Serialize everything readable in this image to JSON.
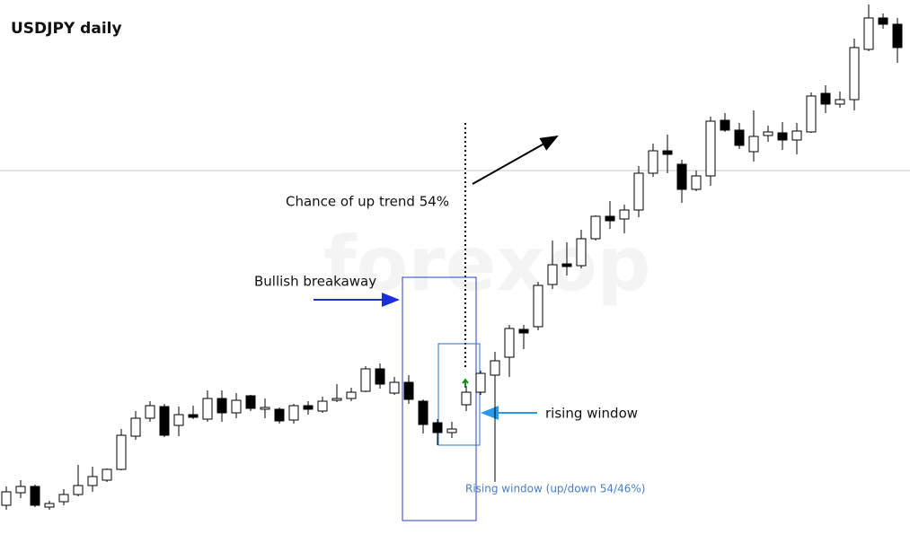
{
  "chart_data": {
    "type": "candlestick",
    "title": "USDJPY daily",
    "ylim": [
      0,
      595
    ],
    "hline": 405,
    "annotations": [
      "Chance of up trend 54%",
      "Bullish breakaway",
      "rising window",
      "Rising window (up/down 54/46%)"
    ],
    "watermark": "forexop",
    "open": [
      32,
      46,
      53,
      30,
      36,
      44,
      54,
      60,
      72,
      109,
      129,
      142,
      121,
      133,
      128,
      151,
      135,
      154,
      139,
      139,
      127,
      143,
      137,
      149,
      151,
      159,
      184,
      157,
      169,
      148,
      124,
      113,
      144,
      158,
      177,
      197,
      228,
      231,
      278,
      301,
      299,
      329,
      354,
      351,
      361,
      402,
      427,
      412,
      384,
      399,
      461,
      450,
      426,
      444,
      447,
      439,
      448,
      491,
      479,
      484,
      540,
      575,
      568
    ],
    "high": [
      53,
      60,
      55,
      37,
      50,
      77,
      75,
      73,
      117,
      137,
      148,
      145,
      142,
      143,
      160,
      160,
      157,
      155,
      151,
      141,
      145,
      148,
      153,
      167,
      163,
      187,
      190,
      175,
      177,
      150,
      128,
      125,
      165,
      182,
      203,
      233,
      233,
      281,
      327,
      325,
      339,
      355,
      371,
      367,
      410,
      435,
      445,
      417,
      405,
      465,
      469,
      458,
      472,
      455,
      459,
      458,
      492,
      500,
      493,
      552,
      590,
      580,
      575
    ],
    "low": [
      27,
      40,
      30,
      27,
      32,
      42,
      47,
      58,
      71,
      105,
      125,
      108,
      109,
      128,
      125,
      125,
      129,
      137,
      129,
      123,
      123,
      133,
      135,
      147,
      148,
      158,
      162,
      155,
      145,
      112,
      99,
      107,
      137,
      155,
      58,
      175,
      206,
      227,
      273,
      288,
      296,
      327,
      340,
      335,
      353,
      398,
      402,
      369,
      382,
      388,
      448,
      429,
      415,
      437,
      428,
      423,
      447,
      469,
      475,
      472,
      538,
      563,
      525
    ],
    "close": [
      47,
      53,
      32,
      34,
      44,
      54,
      64,
      72,
      110,
      129,
      143,
      110,
      133,
      130,
      151,
      135,
      149,
      140,
      141,
      126,
      143,
      139,
      148,
      151,
      158,
      184,
      167,
      169,
      150,
      122,
      113,
      117,
      158,
      179,
      193,
      229,
      224,
      277,
      300,
      298,
      329,
      354,
      349,
      361,
      402,
      427,
      423,
      384,
      399,
      460,
      450,
      433,
      443,
      448,
      439,
      449,
      488,
      479,
      484,
      542,
      575,
      568,
      542
    ]
  }
}
